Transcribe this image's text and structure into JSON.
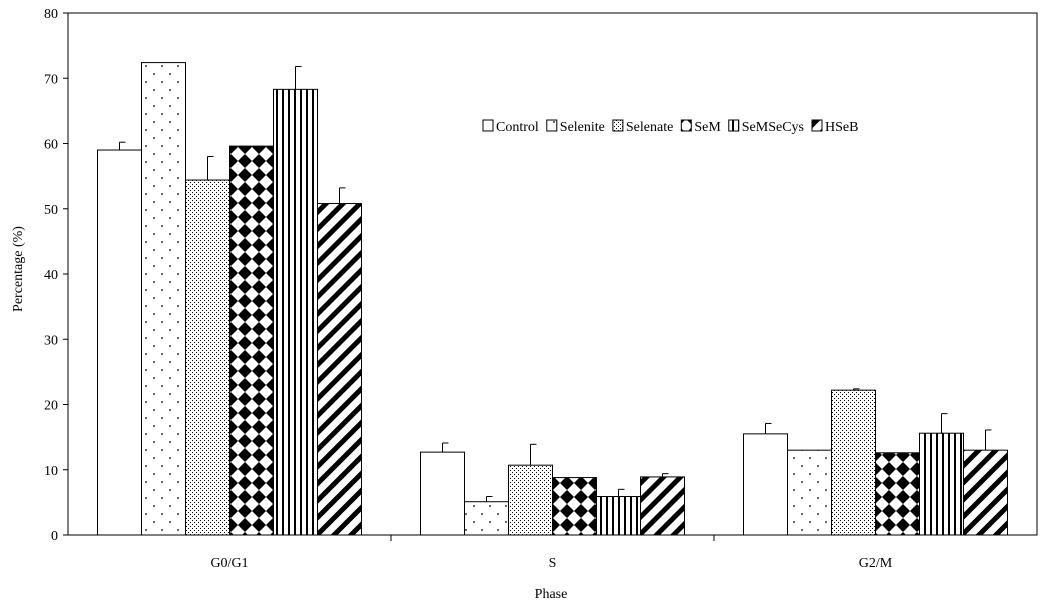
{
  "chart_data": {
    "type": "bar",
    "title": "",
    "xlabel": "Phase",
    "ylabel": "Percentage (%)",
    "ylim": [
      0,
      80
    ],
    "yticks": [
      "0",
      "10",
      "20",
      "30",
      "40",
      "50",
      "60",
      "70",
      "80"
    ],
    "categories": [
      "G0/G1",
      "S",
      "G2/M"
    ],
    "legend_position": "top-right",
    "grid": false,
    "series": [
      {
        "name": "Control",
        "pattern": "white",
        "values": [
          59.0,
          12.7,
          15.5
        ],
        "errors": [
          1.2,
          1.4,
          1.6
        ]
      },
      {
        "name": "Selenite",
        "pattern": "sparse-dots",
        "values": [
          72.4,
          5.1,
          13.0
        ],
        "errors": [
          0.0,
          0.8,
          0.0
        ]
      },
      {
        "name": "Selenate",
        "pattern": "dense-dots",
        "values": [
          54.4,
          10.7,
          22.2
        ],
        "errors": [
          3.6,
          3.2,
          0.2
        ]
      },
      {
        "name": "SeM",
        "pattern": "diamond-checker",
        "values": [
          59.6,
          8.8,
          12.6
        ],
        "errors": [
          0.0,
          0.0,
          0.0
        ]
      },
      {
        "name": "SeMSeCys",
        "pattern": "vertical-lines",
        "values": [
          68.3,
          5.9,
          15.6
        ],
        "errors": [
          3.5,
          1.1,
          3.0
        ]
      },
      {
        "name": "HSeB",
        "pattern": "diagonal-stripes",
        "values": [
          50.8,
          8.9,
          13.0
        ],
        "errors": [
          2.4,
          0.5,
          3.1
        ]
      }
    ],
    "colors": {
      "axis": "#000000",
      "background": "#ffffff",
      "bar_fill": "#ffffff"
    }
  }
}
